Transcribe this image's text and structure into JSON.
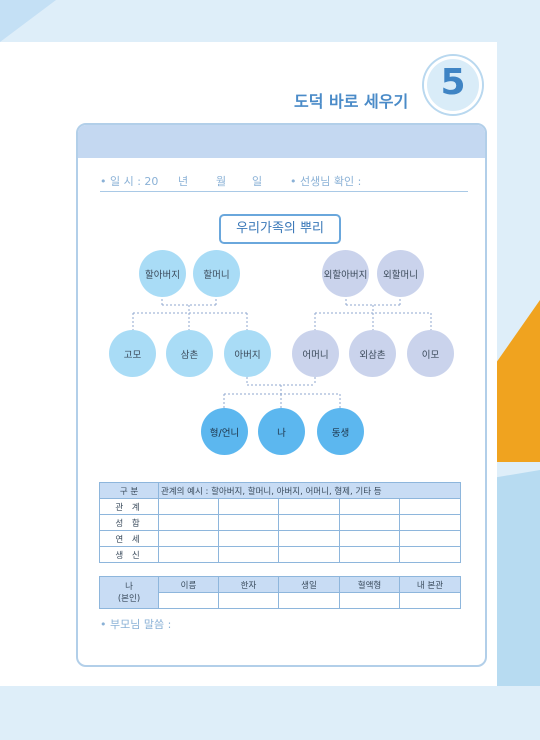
{
  "page": {
    "title": "도덕 바로 세우기",
    "number": "5"
  },
  "info": {
    "date_label": "• 일 시 : 20",
    "year": "년",
    "month": "월",
    "day": "일",
    "teacher_check": "• 선생님 확인 :"
  },
  "tree": {
    "title": "우리가족의 뿌리",
    "paternal_grandparents": [
      "할아버지",
      "할머니"
    ],
    "maternal_grandparents": [
      "외할아버지",
      "외할머니"
    ],
    "paternal_side": [
      "고모",
      "삼촌",
      "아버지"
    ],
    "maternal_side": [
      "어머니",
      "외삼촌",
      "이모"
    ],
    "siblings": [
      "형/언니",
      "나",
      "동생"
    ]
  },
  "relation_table": {
    "header_label": "구 분",
    "header_note": "관계의 예시 : 할아버지, 할머니, 아버지, 어머니, 형제, 기타 등",
    "rows": [
      "관 계",
      "성 함",
      "연 세",
      "생 신"
    ]
  },
  "self_table": {
    "label_line1": "나",
    "label_line2": "(본인)",
    "columns": [
      "이름",
      "한자",
      "생일",
      "혈액형",
      "내 본관"
    ]
  },
  "parents_comment": "• 부모님 말씀 :"
}
